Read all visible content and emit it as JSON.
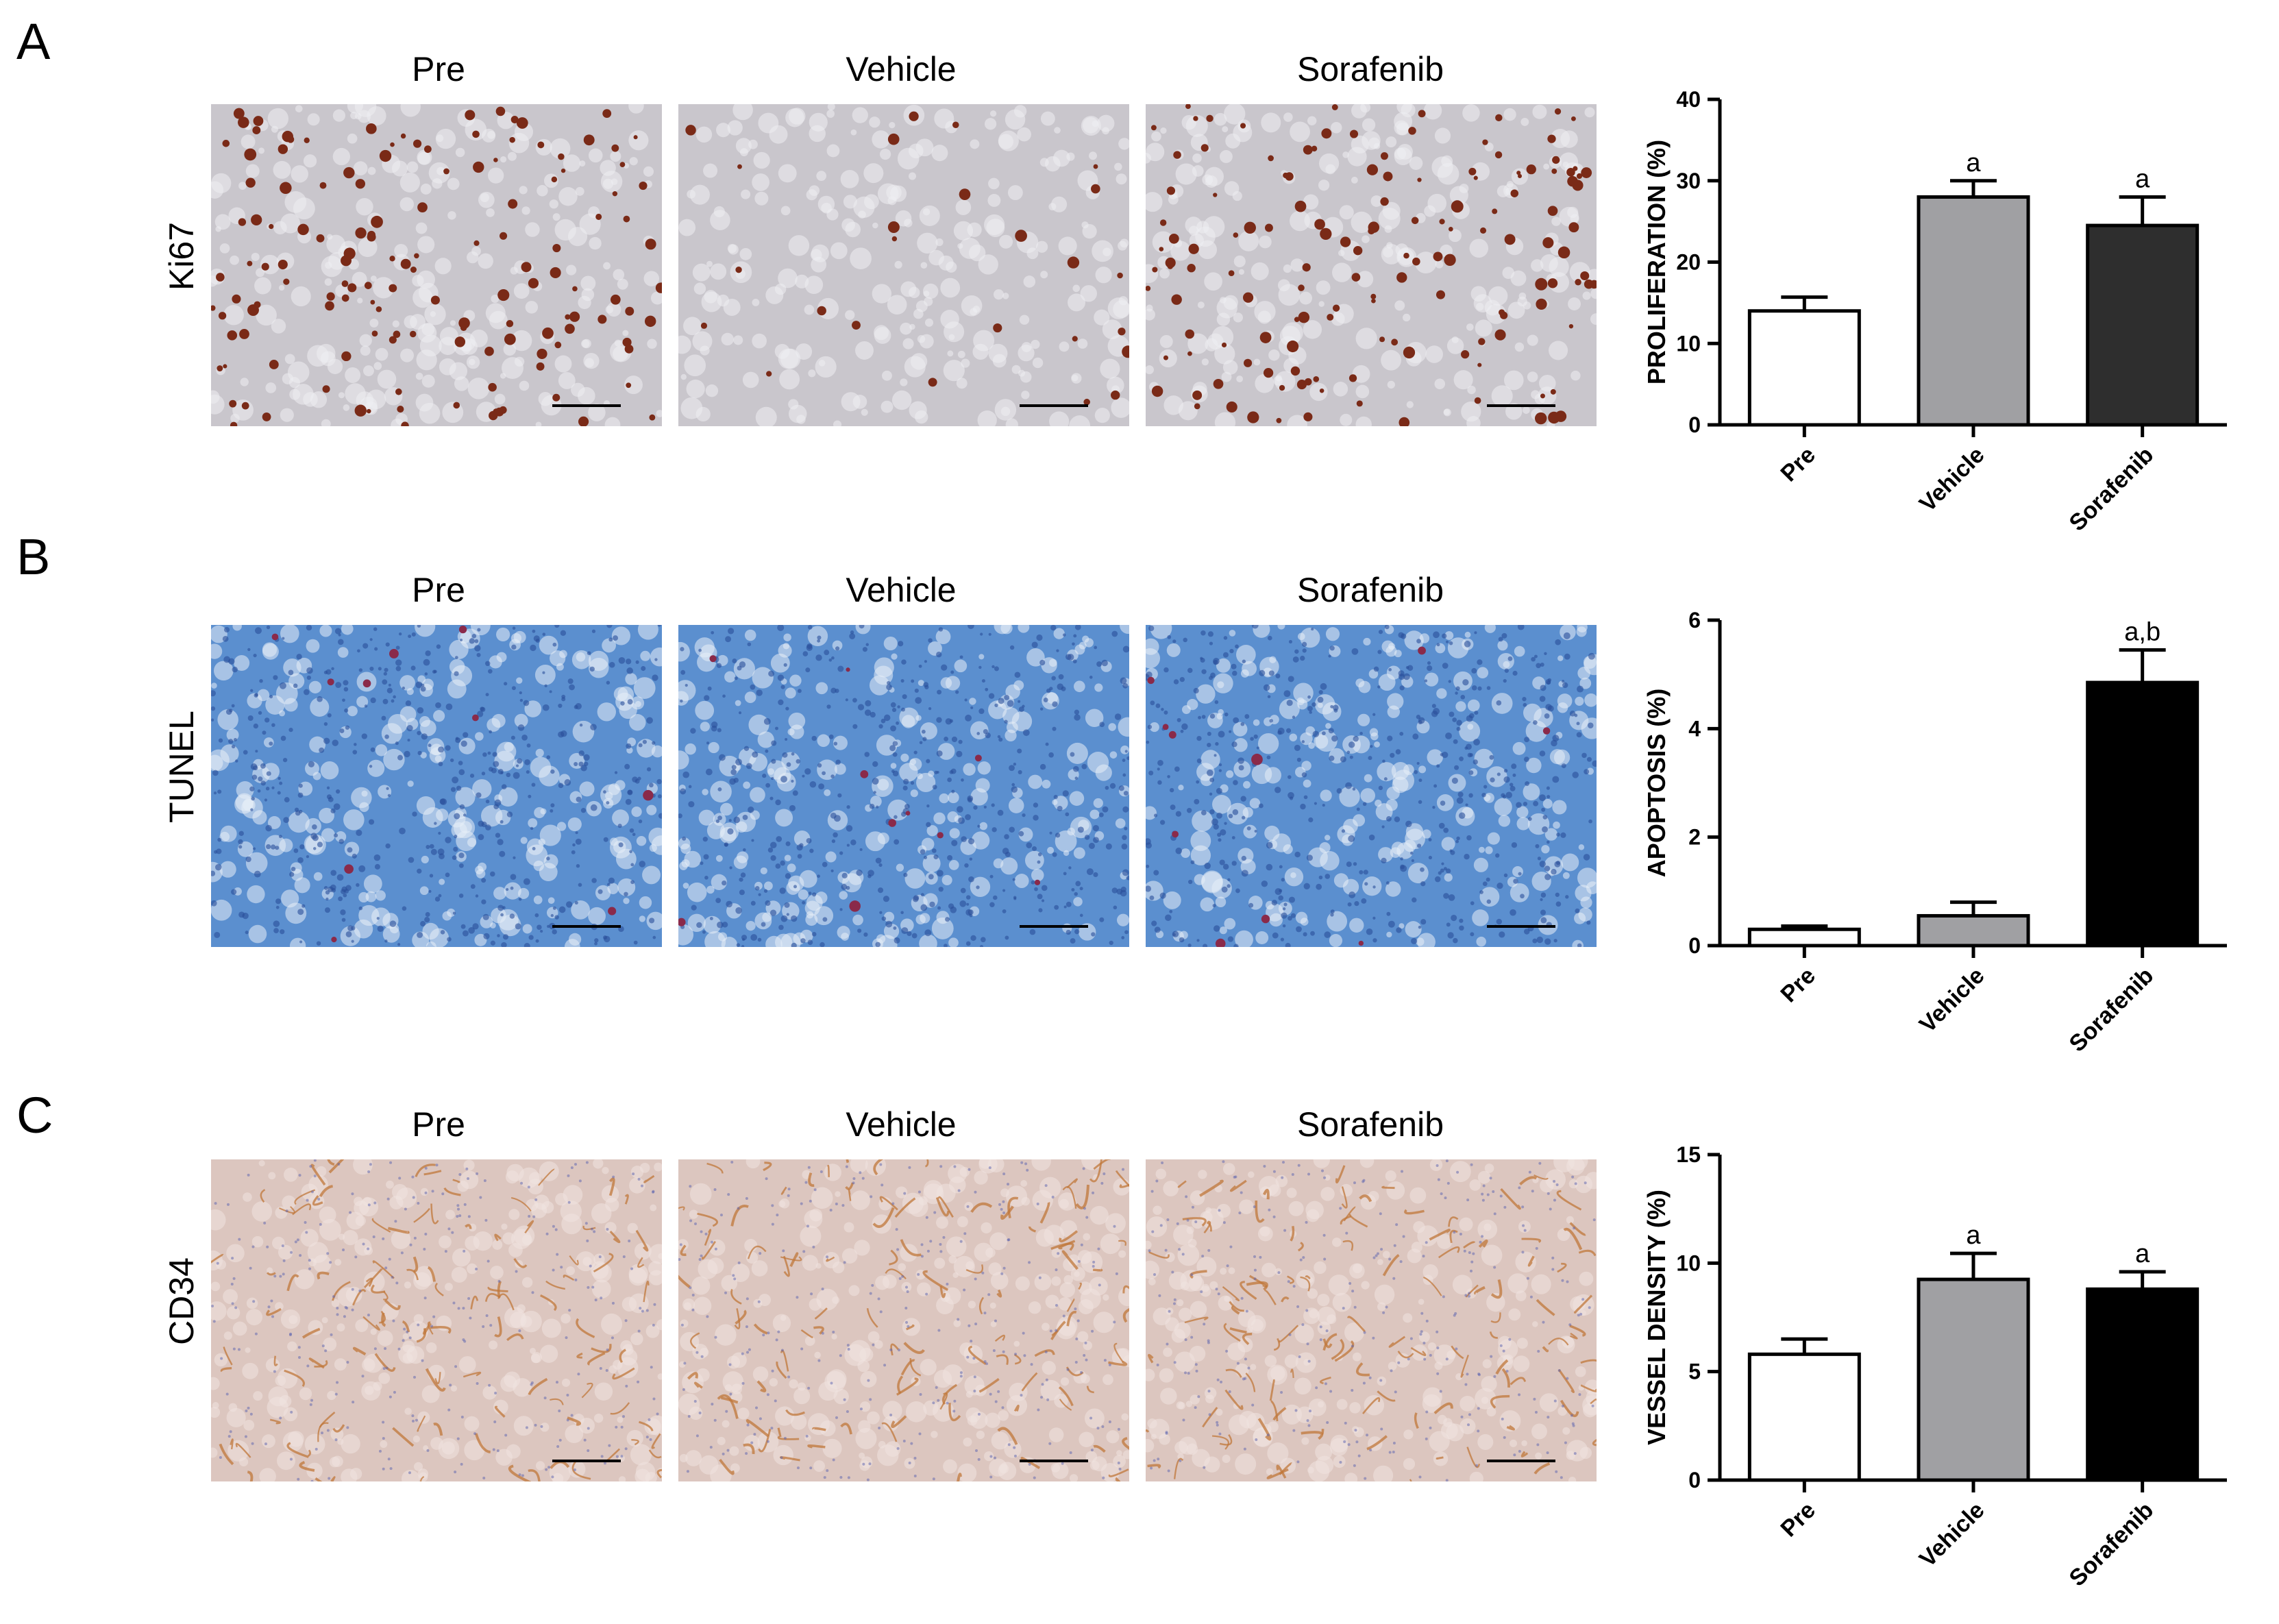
{
  "panels": [
    {
      "letter": "A",
      "stain": "Ki67",
      "image_titles": [
        "Pre",
        "Vehicle",
        "Sorafenib"
      ]
    },
    {
      "letter": "B",
      "stain": "TUNEL",
      "image_titles": [
        "Pre",
        "Vehicle",
        "Sorafenib"
      ]
    },
    {
      "letter": "C",
      "stain": "CD34",
      "image_titles": [
        "Pre",
        "Vehicle",
        "Sorafenib"
      ]
    }
  ],
  "colors": {
    "pre": "#ffffff",
    "vehicle": "#a0a0a3",
    "sorafenib_A": "#2e2e2e",
    "sorafenib_BC": "#000000",
    "ki67_bg": "#c9c6cc",
    "ki67_dot": "#7a2a17",
    "tunel_bg": "#5b8fcf",
    "tunel_dot": "#8a2a4a",
    "cd34_bg": "#dcc6bf",
    "cd34_vessel": "#c0773a"
  },
  "chart_data": [
    {
      "type": "bar",
      "ylabel": "PROLIFERATION (%)",
      "categories": [
        "Pre",
        "Vehicle",
        "Sorafenib"
      ],
      "values": [
        14,
        28,
        24.5
      ],
      "errors": [
        1.7,
        2.0,
        3.5
      ],
      "annotations": [
        "",
        "a",
        "a"
      ],
      "ylim": [
        0,
        40
      ],
      "yticks": [
        0,
        10,
        20,
        30,
        40
      ]
    },
    {
      "type": "bar",
      "ylabel": "APOPTOSIS (%)",
      "categories": [
        "Pre",
        "Vehicle",
        "Sorafenib"
      ],
      "values": [
        0.3,
        0.55,
        4.85
      ],
      "errors": [
        0.06,
        0.25,
        0.6
      ],
      "annotations": [
        "",
        "",
        "a,b"
      ],
      "ylim": [
        0,
        6
      ],
      "yticks": [
        0,
        2,
        4,
        6
      ]
    },
    {
      "type": "bar",
      "ylabel": "VESSEL DENSITY (%)",
      "categories": [
        "Pre",
        "Vehicle",
        "Sorafenib"
      ],
      "values": [
        5.8,
        9.25,
        8.8
      ],
      "errors": [
        0.7,
        1.2,
        0.8
      ],
      "annotations": [
        "",
        "a",
        "a"
      ],
      "ylim": [
        0,
        15
      ],
      "yticks": [
        0,
        5,
        10,
        15
      ]
    }
  ]
}
